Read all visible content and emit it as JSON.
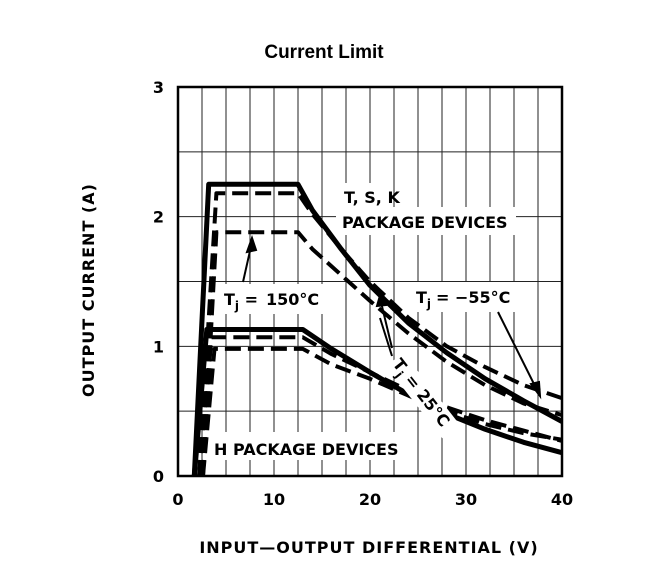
{
  "chart_data": {
    "type": "line",
    "title": "Current Limit",
    "xlabel": "INPUT—OUTPUT DIFFERENTIAL (V)",
    "ylabel": "OUTPUT CURRENT (A)",
    "xlim": [
      0,
      40
    ],
    "ylim": [
      0,
      3
    ],
    "xticks": [
      0,
      10,
      20,
      30,
      40
    ],
    "yticks": [
      0,
      1,
      2,
      3
    ],
    "grid": true,
    "legend": "none",
    "series": [
      {
        "group": "T, S, K",
        "style": "solid",
        "x": [
          1.7,
          3.2,
          12.5,
          14,
          17,
          20,
          24,
          28,
          32,
          36,
          40
        ],
        "y": [
          0,
          2.25,
          2.25,
          2.05,
          1.75,
          1.47,
          1.18,
          0.95,
          0.75,
          0.58,
          0.42
        ]
      },
      {
        "group": "T, S, K",
        "style": "dashed",
        "x": [
          2.2,
          4,
          12.5,
          14,
          17,
          20,
          24,
          28,
          32,
          36,
          40
        ],
        "y": [
          0,
          2.18,
          2.18,
          2.02,
          1.75,
          1.5,
          1.22,
          1.0,
          0.84,
          0.7,
          0.6
        ]
      },
      {
        "group": "T, S, K",
        "style": "dashed",
        "x": [
          2.6,
          4,
          12.5,
          14,
          17,
          20,
          24,
          28,
          32,
          36,
          40
        ],
        "y": [
          0,
          1.88,
          1.88,
          1.75,
          1.55,
          1.35,
          1.1,
          0.88,
          0.7,
          0.56,
          0.47
        ]
      },
      {
        "group": "H",
        "style": "solid",
        "x": [
          1.7,
          3,
          13,
          16,
          20,
          24,
          28,
          32,
          36,
          40
        ],
        "y": [
          0,
          1.13,
          1.13,
          0.98,
          0.8,
          0.63,
          0.48,
          0.36,
          0.26,
          0.18
        ]
      },
      {
        "group": "H",
        "style": "dashed",
        "x": [
          2.2,
          3.5,
          13,
          16,
          20,
          24,
          28,
          32,
          36,
          40
        ],
        "y": [
          0,
          1.07,
          1.07,
          0.94,
          0.8,
          0.66,
          0.53,
          0.43,
          0.35,
          0.27
        ]
      },
      {
        "group": "H",
        "style": "dashed",
        "x": [
          2.6,
          3.8,
          13,
          16,
          20,
          24,
          28,
          32,
          36,
          40
        ],
        "y": [
          0,
          0.98,
          0.98,
          0.86,
          0.75,
          0.62,
          0.5,
          0.4,
          0.33,
          0.28
        ]
      }
    ],
    "annotations": [
      {
        "id": "tsk-line1",
        "text": "T, S, K",
        "x": 16.5,
        "y": 2.12
      },
      {
        "id": "tsk-line2",
        "text": "PACKAGE DEVICES",
        "x": 17,
        "y": 1.92
      },
      {
        "id": "h-label",
        "text": "H PACKAGE DEVICES",
        "x": 4,
        "y": 0.2
      },
      {
        "id": "t150",
        "text": "150°C",
        "x": 8,
        "y": 1.36
      },
      {
        "id": "t55",
        "text": "= −55°C",
        "x": 26.5,
        "y": 1.36
      },
      {
        "id": "t25",
        "text": "= 25°C",
        "x": 23.2,
        "y": 0.8
      }
    ]
  }
}
